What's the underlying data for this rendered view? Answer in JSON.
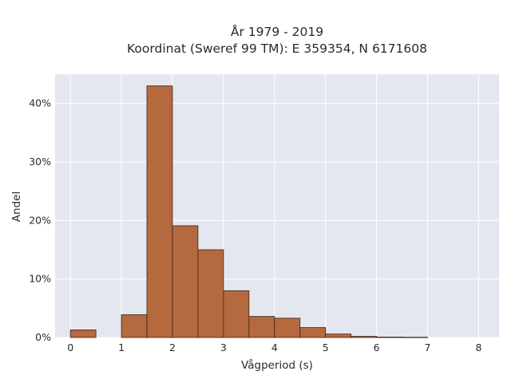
{
  "chart_data": {
    "type": "bar",
    "title_lines": [
      "År 1979 - 2019",
      "Koordinat (Sweref 99 TM): E 359354, N 6171608"
    ],
    "xlabel": "Vågperiod (s)",
    "ylabel": "Andel",
    "xlim": [
      -0.3,
      8.4
    ],
    "ylim": [
      0,
      45
    ],
    "x_ticks": [
      {
        "value": 0,
        "label": "0"
      },
      {
        "value": 1,
        "label": "1"
      },
      {
        "value": 2,
        "label": "2"
      },
      {
        "value": 3,
        "label": "3"
      },
      {
        "value": 4,
        "label": "4"
      },
      {
        "value": 5,
        "label": "5"
      },
      {
        "value": 6,
        "label": "6"
      },
      {
        "value": 7,
        "label": "7"
      },
      {
        "value": 8,
        "label": "8"
      }
    ],
    "y_ticks": [
      {
        "value": 0,
        "label": "0%"
      },
      {
        "value": 10,
        "label": "10%"
      },
      {
        "value": 20,
        "label": "20%"
      },
      {
        "value": 30,
        "label": "30%"
      },
      {
        "value": 40,
        "label": "40%"
      }
    ],
    "grid": true,
    "bar_color": "#b5693e",
    "bar_edge_color": "#3a2418",
    "background_color": "#e5e7f0",
    "bins": [
      {
        "x0": 0.0,
        "x1": 0.5,
        "value": 1.3
      },
      {
        "x0": 0.5,
        "x1": 1.0,
        "value": 0.0
      },
      {
        "x0": 1.0,
        "x1": 1.5,
        "value": 3.9
      },
      {
        "x0": 1.5,
        "x1": 2.0,
        "value": 43.0
      },
      {
        "x0": 2.0,
        "x1": 2.5,
        "value": 19.1
      },
      {
        "x0": 2.5,
        "x1": 3.0,
        "value": 15.0
      },
      {
        "x0": 3.0,
        "x1": 3.5,
        "value": 8.0
      },
      {
        "x0": 3.5,
        "x1": 4.0,
        "value": 3.6
      },
      {
        "x0": 4.0,
        "x1": 4.5,
        "value": 3.3
      },
      {
        "x0": 4.5,
        "x1": 5.0,
        "value": 1.7
      },
      {
        "x0": 5.0,
        "x1": 5.5,
        "value": 0.6
      },
      {
        "x0": 5.5,
        "x1": 6.0,
        "value": 0.2
      },
      {
        "x0": 6.0,
        "x1": 6.5,
        "value": 0.08
      },
      {
        "x0": 6.5,
        "x1": 7.0,
        "value": 0.05
      }
    ]
  }
}
